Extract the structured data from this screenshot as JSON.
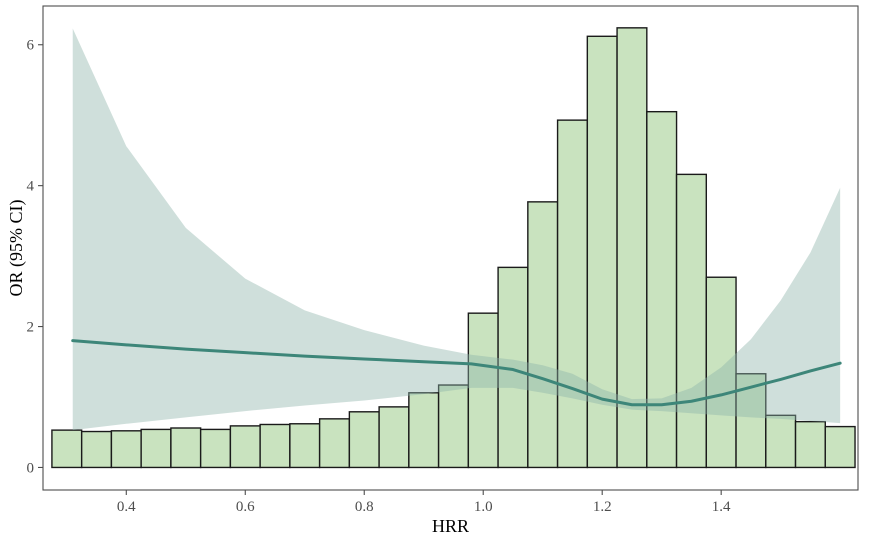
{
  "chart_data": {
    "type": "bar",
    "title": "",
    "xlabel": "HRR",
    "ylabel": "OR (95% CI)",
    "xlim": [
      0.26,
      1.63
    ],
    "ylim": [
      -0.32,
      6.55
    ],
    "x_ticks": [
      {
        "value": 0.4,
        "label": "0.4"
      },
      {
        "value": 0.6,
        "label": "0.6"
      },
      {
        "value": 0.8,
        "label": "0.8"
      },
      {
        "value": 1.0,
        "label": "1.0"
      },
      {
        "value": 1.2,
        "label": "1.2"
      },
      {
        "value": 1.4,
        "label": "1.4"
      }
    ],
    "y_ticks": [
      {
        "value": 0,
        "label": "0"
      },
      {
        "value": 2,
        "label": "2"
      },
      {
        "value": 4,
        "label": "4"
      },
      {
        "value": 6,
        "label": "6"
      }
    ],
    "grid": false,
    "colors": {
      "bar_fill": "#c9e3bf",
      "bar_stroke": "#1a1a1a",
      "ci_fill": "#8db3aa",
      "line": "#3d8679",
      "panel_border": "#4d4d4d"
    },
    "histogram": {
      "bin_edges": [
        0.275,
        0.325,
        0.375,
        0.425,
        0.475,
        0.525,
        0.575,
        0.625,
        0.675,
        0.725,
        0.775,
        0.825,
        0.875,
        0.925,
        0.975,
        1.025,
        1.075,
        1.125,
        1.175,
        1.225,
        1.275,
        1.325,
        1.375,
        1.425,
        1.475,
        1.525,
        1.575,
        1.625
      ],
      "heights": [
        0.53,
        0.51,
        0.52,
        0.54,
        0.56,
        0.54,
        0.59,
        0.61,
        0.62,
        0.69,
        0.79,
        0.86,
        1.06,
        1.17,
        2.19,
        2.84,
        3.77,
        4.93,
        6.12,
        6.24,
        5.05,
        4.16,
        2.7,
        1.33,
        0.74,
        0.65,
        0.58
      ]
    },
    "series": [
      {
        "x": [
          0.31,
          0.4,
          0.5,
          0.6,
          0.7,
          0.8,
          0.9,
          0.98,
          1.05,
          1.1,
          1.15,
          1.2,
          1.25,
          1.3,
          1.35,
          1.4,
          1.45,
          1.5,
          1.55,
          1.6
        ],
        "y": [
          1.8,
          1.74,
          1.68,
          1.63,
          1.58,
          1.54,
          1.5,
          1.47,
          1.39,
          1.26,
          1.12,
          0.97,
          0.89,
          0.89,
          0.94,
          1.03,
          1.14,
          1.25,
          1.37,
          1.48
        ],
        "lower": [
          0.53,
          0.62,
          0.71,
          0.8,
          0.88,
          0.95,
          1.04,
          1.13,
          1.13,
          1.06,
          0.98,
          0.89,
          0.82,
          0.8,
          0.77,
          0.74,
          0.71,
          0.69,
          0.66,
          0.63
        ],
        "upper": [
          6.23,
          4.56,
          3.4,
          2.68,
          2.23,
          1.95,
          1.73,
          1.6,
          1.53,
          1.45,
          1.33,
          1.11,
          0.97,
          0.98,
          1.13,
          1.42,
          1.82,
          2.37,
          3.05,
          3.97
        ]
      }
    ]
  }
}
